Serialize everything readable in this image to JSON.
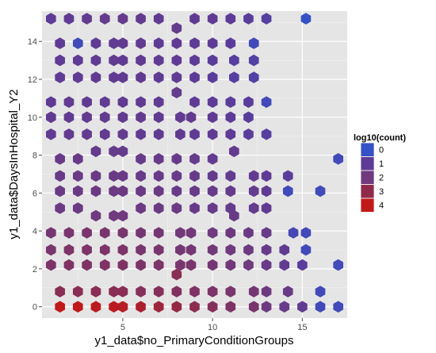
{
  "chart_data": {
    "type": "hexbin",
    "xlabel": "y1_data$no_PrimaryConditionGroups",
    "ylabel": "y1_data$DaysInHospital_Y2",
    "xlim": [
      0.5,
      17.5
    ],
    "ylim": [
      -0.6,
      15.6
    ],
    "x_ticks": [
      5,
      10,
      15
    ],
    "y_ticks": [
      0,
      2,
      4,
      6,
      8,
      10,
      12,
      14
    ],
    "grid": true,
    "legend": {
      "title": "log10(count)",
      "position": "right",
      "values": [
        0,
        1,
        2,
        3,
        4
      ],
      "labels": [
        "0",
        "1",
        "2",
        "3",
        "4"
      ],
      "colors": [
        "#3551c6",
        "#5e3b96",
        "#6f3a7e",
        "#8f2b4a",
        "#c0191b"
      ]
    },
    "hexagons": [
      {
        "x": 1,
        "y": 15.2,
        "log10_count": 1.0
      },
      {
        "x": 2,
        "y": 15.2,
        "log10_count": 1.1
      },
      {
        "x": 3,
        "y": 15.2,
        "log10_count": 1.3
      },
      {
        "x": 4,
        "y": 15.2,
        "log10_count": 1.4
      },
      {
        "x": 5,
        "y": 15.2,
        "log10_count": 1.4
      },
      {
        "x": 6,
        "y": 15.2,
        "log10_count": 1.3
      },
      {
        "x": 7,
        "y": 15.2,
        "log10_count": 1.2
      },
      {
        "x": 8,
        "y": 14.7,
        "log10_count": 1.4
      },
      {
        "x": 9,
        "y": 15.2,
        "log10_count": 1.2
      },
      {
        "x": 10,
        "y": 15.2,
        "log10_count": 1.1
      },
      {
        "x": 11,
        "y": 15.2,
        "log10_count": 1.0
      },
      {
        "x": 12,
        "y": 15.2,
        "log10_count": 0.9
      },
      {
        "x": 13,
        "y": 15.2,
        "log10_count": 0.8
      },
      {
        "x": 15.2,
        "y": 15.2,
        "log10_count": 0.0
      },
      {
        "x": 1.5,
        "y": 13.9,
        "log10_count": 1.1
      },
      {
        "x": 2.5,
        "y": 13.9,
        "log10_count": 0.3
      },
      {
        "x": 3.5,
        "y": 13.9,
        "log10_count": 1.1
      },
      {
        "x": 4.5,
        "y": 13.9,
        "log10_count": 1.2
      },
      {
        "x": 5,
        "y": 13.9,
        "log10_count": 1.2
      },
      {
        "x": 6,
        "y": 13.9,
        "log10_count": 1.2
      },
      {
        "x": 7,
        "y": 13.9,
        "log10_count": 1.1
      },
      {
        "x": 8,
        "y": 13.9,
        "log10_count": 1.1
      },
      {
        "x": 9,
        "y": 13.9,
        "log10_count": 1.0
      },
      {
        "x": 10,
        "y": 13.9,
        "log10_count": 1.0
      },
      {
        "x": 11,
        "y": 13.9,
        "log10_count": 0.9
      },
      {
        "x": 12.3,
        "y": 13.9,
        "log10_count": 0.3
      },
      {
        "x": 1.5,
        "y": 13.0,
        "log10_count": 1.1
      },
      {
        "x": 2.5,
        "y": 13.0,
        "log10_count": 1.1
      },
      {
        "x": 3.5,
        "y": 13.0,
        "log10_count": 1.2
      },
      {
        "x": 4.5,
        "y": 13.0,
        "log10_count": 1.2
      },
      {
        "x": 5,
        "y": 13.0,
        "log10_count": 1.2
      },
      {
        "x": 6,
        "y": 13.0,
        "log10_count": 1.2
      },
      {
        "x": 7,
        "y": 13.0,
        "log10_count": 1.1
      },
      {
        "x": 8,
        "y": 13.0,
        "log10_count": 1.1
      },
      {
        "x": 9,
        "y": 13.0,
        "log10_count": 1.0
      },
      {
        "x": 10,
        "y": 13.0,
        "log10_count": 0.9
      },
      {
        "x": 11.2,
        "y": 13.0,
        "log10_count": 0.8
      },
      {
        "x": 12.3,
        "y": 13.0,
        "log10_count": 0.7
      },
      {
        "x": 1.5,
        "y": 12.1,
        "log10_count": 1.1
      },
      {
        "x": 2.5,
        "y": 12.1,
        "log10_count": 1.1
      },
      {
        "x": 3.5,
        "y": 12.1,
        "log10_count": 1.2
      },
      {
        "x": 4.5,
        "y": 12.1,
        "log10_count": 1.2
      },
      {
        "x": 5,
        "y": 12.1,
        "log10_count": 1.2
      },
      {
        "x": 6,
        "y": 12.1,
        "log10_count": 1.2
      },
      {
        "x": 7,
        "y": 12.1,
        "log10_count": 1.1
      },
      {
        "x": 8,
        "y": 12.1,
        "log10_count": 1.1
      },
      {
        "x": 9,
        "y": 12.1,
        "log10_count": 1.0
      },
      {
        "x": 10,
        "y": 12.1,
        "log10_count": 0.9
      },
      {
        "x": 11.2,
        "y": 12.1,
        "log10_count": 0.8
      },
      {
        "x": 12.3,
        "y": 12.1,
        "log10_count": 0.7
      },
      {
        "x": 8,
        "y": 11.3,
        "log10_count": 1.4
      },
      {
        "x": 1,
        "y": 10.8,
        "log10_count": 1.1
      },
      {
        "x": 2,
        "y": 10.8,
        "log10_count": 1.2
      },
      {
        "x": 3,
        "y": 10.8,
        "log10_count": 1.2
      },
      {
        "x": 4,
        "y": 10.8,
        "log10_count": 1.2
      },
      {
        "x": 5,
        "y": 10.8,
        "log10_count": 1.2
      },
      {
        "x": 6,
        "y": 10.8,
        "log10_count": 1.2
      },
      {
        "x": 7,
        "y": 10.8,
        "log10_count": 1.1
      },
      {
        "x": 9,
        "y": 10.8,
        "log10_count": 1.1
      },
      {
        "x": 10,
        "y": 10.8,
        "log10_count": 1.0
      },
      {
        "x": 11,
        "y": 10.8,
        "log10_count": 0.9
      },
      {
        "x": 12,
        "y": 10.8,
        "log10_count": 0.9
      },
      {
        "x": 13,
        "y": 10.8,
        "log10_count": 0.3
      },
      {
        "x": 1,
        "y": 10.0,
        "log10_count": 1.2
      },
      {
        "x": 2,
        "y": 10.0,
        "log10_count": 1.2
      },
      {
        "x": 3,
        "y": 10.0,
        "log10_count": 1.3
      },
      {
        "x": 4,
        "y": 10.0,
        "log10_count": 1.3
      },
      {
        "x": 5,
        "y": 10.0,
        "log10_count": 1.3
      },
      {
        "x": 6,
        "y": 10.0,
        "log10_count": 1.3
      },
      {
        "x": 7,
        "y": 10.0,
        "log10_count": 1.2
      },
      {
        "x": 8.2,
        "y": 10.0,
        "log10_count": 1.2
      },
      {
        "x": 8.8,
        "y": 10.0,
        "log10_count": 1.3
      },
      {
        "x": 10,
        "y": 10.0,
        "log10_count": 1.1
      },
      {
        "x": 11,
        "y": 10.0,
        "log10_count": 1.0
      },
      {
        "x": 12,
        "y": 10.0,
        "log10_count": 0.9
      },
      {
        "x": 1,
        "y": 9.1,
        "log10_count": 1.2
      },
      {
        "x": 2,
        "y": 9.1,
        "log10_count": 1.3
      },
      {
        "x": 3,
        "y": 9.1,
        "log10_count": 1.3
      },
      {
        "x": 4,
        "y": 9.1,
        "log10_count": 1.3
      },
      {
        "x": 5,
        "y": 9.1,
        "log10_count": 1.3
      },
      {
        "x": 6,
        "y": 9.1,
        "log10_count": 1.2
      },
      {
        "x": 7,
        "y": 9.1,
        "log10_count": 1.2
      },
      {
        "x": 8.2,
        "y": 9.1,
        "log10_count": 1.2
      },
      {
        "x": 9,
        "y": 9.1,
        "log10_count": 1.1
      },
      {
        "x": 10,
        "y": 9.1,
        "log10_count": 1.1
      },
      {
        "x": 11,
        "y": 9.1,
        "log10_count": 1.0
      },
      {
        "x": 12,
        "y": 9.1,
        "log10_count": 0.9
      },
      {
        "x": 13,
        "y": 9.1,
        "log10_count": 0.8
      },
      {
        "x": 3.5,
        "y": 8.2,
        "log10_count": 1.4
      },
      {
        "x": 4.5,
        "y": 8.2,
        "log10_count": 1.4
      },
      {
        "x": 5,
        "y": 8.2,
        "log10_count": 1.4
      },
      {
        "x": 11.2,
        "y": 8.2,
        "log10_count": 1.3
      },
      {
        "x": 1.5,
        "y": 7.8,
        "log10_count": 1.6
      },
      {
        "x": 2.5,
        "y": 7.8,
        "log10_count": 1.6
      },
      {
        "x": 6,
        "y": 7.8,
        "log10_count": 1.5
      },
      {
        "x": 7,
        "y": 7.8,
        "log10_count": 1.5
      },
      {
        "x": 8,
        "y": 7.8,
        "log10_count": 1.5
      },
      {
        "x": 9,
        "y": 7.8,
        "log10_count": 1.4
      },
      {
        "x": 10,
        "y": 7.8,
        "log10_count": 1.3
      },
      {
        "x": 17,
        "y": 7.8,
        "log10_count": 0.3
      },
      {
        "x": 1.5,
        "y": 6.9,
        "log10_count": 1.6
      },
      {
        "x": 2.5,
        "y": 6.9,
        "log10_count": 1.7
      },
      {
        "x": 3.5,
        "y": 6.9,
        "log10_count": 1.7
      },
      {
        "x": 4.5,
        "y": 6.9,
        "log10_count": 1.7
      },
      {
        "x": 5,
        "y": 6.9,
        "log10_count": 1.7
      },
      {
        "x": 6,
        "y": 6.9,
        "log10_count": 1.6
      },
      {
        "x": 7,
        "y": 6.9,
        "log10_count": 1.6
      },
      {
        "x": 8,
        "y": 6.9,
        "log10_count": 1.5
      },
      {
        "x": 9,
        "y": 6.9,
        "log10_count": 1.5
      },
      {
        "x": 10,
        "y": 6.9,
        "log10_count": 1.4
      },
      {
        "x": 11,
        "y": 6.9,
        "log10_count": 1.3
      },
      {
        "x": 12.3,
        "y": 6.9,
        "log10_count": 1.2
      },
      {
        "x": 13,
        "y": 6.9,
        "log10_count": 1.1
      },
      {
        "x": 14.2,
        "y": 6.9,
        "log10_count": 0.9
      },
      {
        "x": 1.5,
        "y": 6.1,
        "log10_count": 1.7
      },
      {
        "x": 2.5,
        "y": 6.1,
        "log10_count": 1.7
      },
      {
        "x": 3.5,
        "y": 6.1,
        "log10_count": 1.8
      },
      {
        "x": 4.5,
        "y": 6.1,
        "log10_count": 1.8
      },
      {
        "x": 5,
        "y": 6.1,
        "log10_count": 1.8
      },
      {
        "x": 6,
        "y": 6.1,
        "log10_count": 1.7
      },
      {
        "x": 7,
        "y": 6.1,
        "log10_count": 1.7
      },
      {
        "x": 8,
        "y": 6.1,
        "log10_count": 1.6
      },
      {
        "x": 9,
        "y": 6.1,
        "log10_count": 1.6
      },
      {
        "x": 10,
        "y": 6.1,
        "log10_count": 1.5
      },
      {
        "x": 11,
        "y": 6.1,
        "log10_count": 1.4
      },
      {
        "x": 12.3,
        "y": 6.1,
        "log10_count": 1.3
      },
      {
        "x": 13,
        "y": 6.1,
        "log10_count": 1.2
      },
      {
        "x": 14.2,
        "y": 6.1,
        "log10_count": 0.3
      },
      {
        "x": 16,
        "y": 6.1,
        "log10_count": 0.3
      },
      {
        "x": 1.5,
        "y": 5.2,
        "log10_count": 1.8
      },
      {
        "x": 2.5,
        "y": 5.2,
        "log10_count": 1.8
      },
      {
        "x": 6,
        "y": 5.2,
        "log10_count": 1.8
      },
      {
        "x": 7,
        "y": 5.2,
        "log10_count": 1.8
      },
      {
        "x": 8,
        "y": 5.2,
        "log10_count": 1.7
      },
      {
        "x": 9,
        "y": 5.2,
        "log10_count": 1.6
      },
      {
        "x": 10,
        "y": 5.2,
        "log10_count": 1.5
      },
      {
        "x": 11,
        "y": 5.2,
        "log10_count": 1.4
      },
      {
        "x": 12.3,
        "y": 5.2,
        "log10_count": 1.3
      },
      {
        "x": 13,
        "y": 5.2,
        "log10_count": 1.2
      },
      {
        "x": 3.5,
        "y": 4.8,
        "log10_count": 2.0
      },
      {
        "x": 4.5,
        "y": 4.8,
        "log10_count": 2.0
      },
      {
        "x": 5,
        "y": 4.8,
        "log10_count": 2.0
      },
      {
        "x": 11.2,
        "y": 4.8,
        "log10_count": 1.6
      },
      {
        "x": 1,
        "y": 3.9,
        "log10_count": 2.2
      },
      {
        "x": 2,
        "y": 3.9,
        "log10_count": 2.3
      },
      {
        "x": 3,
        "y": 3.9,
        "log10_count": 2.3
      },
      {
        "x": 4,
        "y": 3.9,
        "log10_count": 2.3
      },
      {
        "x": 5,
        "y": 3.9,
        "log10_count": 2.3
      },
      {
        "x": 6,
        "y": 3.9,
        "log10_count": 2.2
      },
      {
        "x": 7,
        "y": 3.9,
        "log10_count": 2.2
      },
      {
        "x": 8.2,
        "y": 3.9,
        "log10_count": 2.1
      },
      {
        "x": 8.8,
        "y": 3.9,
        "log10_count": 2.1
      },
      {
        "x": 10,
        "y": 3.9,
        "log10_count": 2.0
      },
      {
        "x": 11,
        "y": 3.9,
        "log10_count": 1.9
      },
      {
        "x": 12,
        "y": 3.9,
        "log10_count": 1.8
      },
      {
        "x": 13,
        "y": 3.9,
        "log10_count": 1.6
      },
      {
        "x": 14.5,
        "y": 3.9,
        "log10_count": 0.4
      },
      {
        "x": 15.2,
        "y": 3.9,
        "log10_count": 0.3
      },
      {
        "x": 1,
        "y": 3.0,
        "log10_count": 2.3
      },
      {
        "x": 2,
        "y": 3.0,
        "log10_count": 2.4
      },
      {
        "x": 3,
        "y": 3.0,
        "log10_count": 2.4
      },
      {
        "x": 4,
        "y": 3.0,
        "log10_count": 2.4
      },
      {
        "x": 5,
        "y": 3.0,
        "log10_count": 2.4
      },
      {
        "x": 6,
        "y": 3.0,
        "log10_count": 2.3
      },
      {
        "x": 7,
        "y": 3.0,
        "log10_count": 2.3
      },
      {
        "x": 8.2,
        "y": 3.0,
        "log10_count": 2.2
      },
      {
        "x": 8.8,
        "y": 3.0,
        "log10_count": 2.2
      },
      {
        "x": 10,
        "y": 3.0,
        "log10_count": 2.1
      },
      {
        "x": 11,
        "y": 3.0,
        "log10_count": 2.0
      },
      {
        "x": 12,
        "y": 3.0,
        "log10_count": 1.9
      },
      {
        "x": 13,
        "y": 3.0,
        "log10_count": 1.5
      },
      {
        "x": 14,
        "y": 3.0,
        "log10_count": 1.2
      },
      {
        "x": 15.2,
        "y": 3.0,
        "log10_count": 0.3
      },
      {
        "x": 1,
        "y": 2.2,
        "log10_count": 2.4
      },
      {
        "x": 2,
        "y": 2.2,
        "log10_count": 2.5
      },
      {
        "x": 3,
        "y": 2.2,
        "log10_count": 2.5
      },
      {
        "x": 4,
        "y": 2.2,
        "log10_count": 2.5
      },
      {
        "x": 5,
        "y": 2.2,
        "log10_count": 2.5
      },
      {
        "x": 6,
        "y": 2.2,
        "log10_count": 2.4
      },
      {
        "x": 7,
        "y": 2.2,
        "log10_count": 2.4
      },
      {
        "x": 8.2,
        "y": 2.2,
        "log10_count": 2.3
      },
      {
        "x": 8.8,
        "y": 2.2,
        "log10_count": 2.3
      },
      {
        "x": 10,
        "y": 2.2,
        "log10_count": 2.2
      },
      {
        "x": 11,
        "y": 2.2,
        "log10_count": 2.1
      },
      {
        "x": 12,
        "y": 2.2,
        "log10_count": 2.0
      },
      {
        "x": 13,
        "y": 2.2,
        "log10_count": 1.6
      },
      {
        "x": 14,
        "y": 2.2,
        "log10_count": 1.2
      },
      {
        "x": 15,
        "y": 2.2,
        "log10_count": 0.9
      },
      {
        "x": 17,
        "y": 2.2,
        "log10_count": 0.3
      },
      {
        "x": 8,
        "y": 1.7,
        "log10_count": 2.8
      },
      {
        "x": 1.5,
        "y": 0.8,
        "log10_count": 2.8
      },
      {
        "x": 2.5,
        "y": 0.8,
        "log10_count": 2.8
      },
      {
        "x": 3.5,
        "y": 0.8,
        "log10_count": 2.8
      },
      {
        "x": 4.5,
        "y": 0.8,
        "log10_count": 2.8
      },
      {
        "x": 5,
        "y": 0.8,
        "log10_count": 2.8
      },
      {
        "x": 6,
        "y": 0.8,
        "log10_count": 2.7
      },
      {
        "x": 7,
        "y": 0.8,
        "log10_count": 2.7
      },
      {
        "x": 8,
        "y": 0.8,
        "log10_count": 2.6
      },
      {
        "x": 9,
        "y": 0.8,
        "log10_count": 2.5
      },
      {
        "x": 10,
        "y": 0.8,
        "log10_count": 2.4
      },
      {
        "x": 11,
        "y": 0.8,
        "log10_count": 2.3
      },
      {
        "x": 12.3,
        "y": 0.8,
        "log10_count": 2.2
      },
      {
        "x": 13,
        "y": 0.8,
        "log10_count": 1.9
      },
      {
        "x": 14.2,
        "y": 0.8,
        "log10_count": 1.7
      },
      {
        "x": 16,
        "y": 0.8,
        "log10_count": 0.3
      },
      {
        "x": 1.5,
        "y": 0.0,
        "log10_count": 4.0
      },
      {
        "x": 2.5,
        "y": 0.0,
        "log10_count": 4.0
      },
      {
        "x": 3.5,
        "y": 0.0,
        "log10_count": 3.9
      },
      {
        "x": 4.5,
        "y": 0.0,
        "log10_count": 3.9
      },
      {
        "x": 5,
        "y": 0.0,
        "log10_count": 3.8
      },
      {
        "x": 6,
        "y": 0.0,
        "log10_count": 3.6
      },
      {
        "x": 7,
        "y": 0.0,
        "log10_count": 3.3
      },
      {
        "x": 8,
        "y": 0.0,
        "log10_count": 3.1
      },
      {
        "x": 9,
        "y": 0.0,
        "log10_count": 2.9
      },
      {
        "x": 10,
        "y": 0.0,
        "log10_count": 2.7
      },
      {
        "x": 11,
        "y": 0.0,
        "log10_count": 2.5
      },
      {
        "x": 12.3,
        "y": 0.0,
        "log10_count": 2.3
      },
      {
        "x": 13,
        "y": 0.0,
        "log10_count": 1.9
      },
      {
        "x": 14,
        "y": 0.0,
        "log10_count": 1.5
      },
      {
        "x": 15,
        "y": 0.0,
        "log10_count": 1.2
      },
      {
        "x": 16,
        "y": 0.0,
        "log10_count": 0.3
      },
      {
        "x": 17,
        "y": 0.0,
        "log10_count": 0.3
      }
    ]
  }
}
